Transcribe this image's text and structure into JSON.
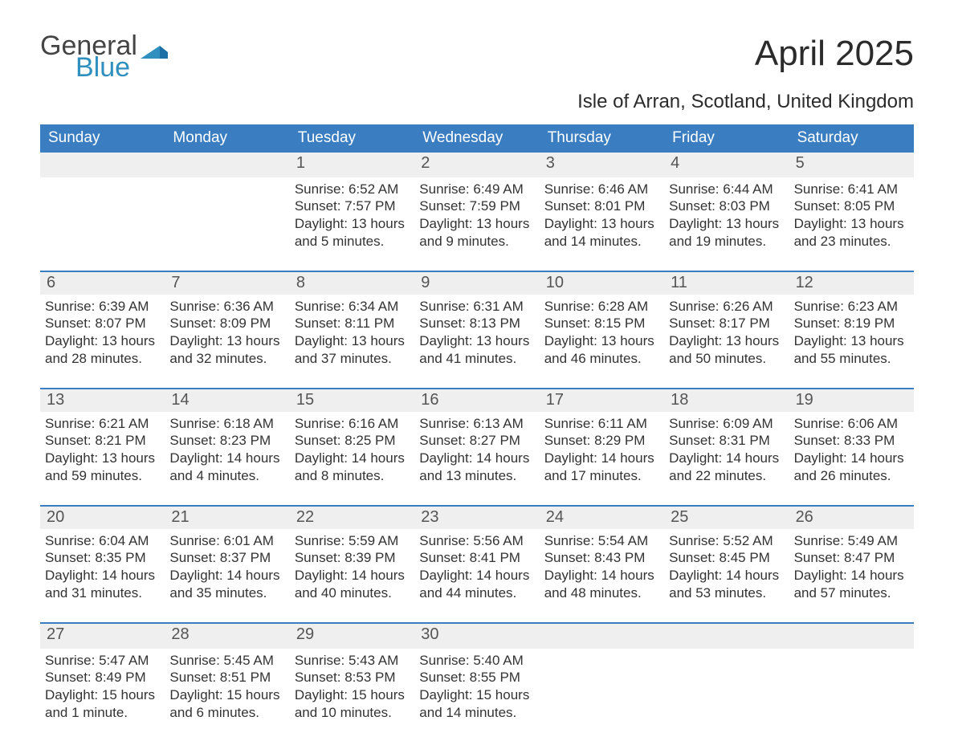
{
  "logo": {
    "line1": "General",
    "line2": "Blue",
    "accent_color": "#2f8fbf"
  },
  "title": "April 2025",
  "subtitle": "Isle of Arran, Scotland, United Kingdom",
  "colors": {
    "header_blue": "#3a7ec1",
    "daynum_bg": "#efefef",
    "row_sep": "#3a7ec1",
    "background": "#ffffff",
    "text": "#222222"
  },
  "typography": {
    "title_pt": 44,
    "subtitle_pt": 24,
    "dow_pt": 19,
    "daynum_pt": 20,
    "cell_pt": 17,
    "font_family": "Arial"
  },
  "days_of_week": [
    "Sunday",
    "Monday",
    "Tuesday",
    "Wednesday",
    "Thursday",
    "Friday",
    "Saturday"
  ],
  "calendar": {
    "leading_blanks": 2,
    "trailing_blanks": 3,
    "days": [
      {
        "n": "1",
        "sunrise": "6:52 AM",
        "sunset": "7:57 PM",
        "daylight": "13 hours and 5 minutes."
      },
      {
        "n": "2",
        "sunrise": "6:49 AM",
        "sunset": "7:59 PM",
        "daylight": "13 hours and 9 minutes."
      },
      {
        "n": "3",
        "sunrise": "6:46 AM",
        "sunset": "8:01 PM",
        "daylight": "13 hours and 14 minutes."
      },
      {
        "n": "4",
        "sunrise": "6:44 AM",
        "sunset": "8:03 PM",
        "daylight": "13 hours and 19 minutes."
      },
      {
        "n": "5",
        "sunrise": "6:41 AM",
        "sunset": "8:05 PM",
        "daylight": "13 hours and 23 minutes."
      },
      {
        "n": "6",
        "sunrise": "6:39 AM",
        "sunset": "8:07 PM",
        "daylight": "13 hours and 28 minutes."
      },
      {
        "n": "7",
        "sunrise": "6:36 AM",
        "sunset": "8:09 PM",
        "daylight": "13 hours and 32 minutes."
      },
      {
        "n": "8",
        "sunrise": "6:34 AM",
        "sunset": "8:11 PM",
        "daylight": "13 hours and 37 minutes."
      },
      {
        "n": "9",
        "sunrise": "6:31 AM",
        "sunset": "8:13 PM",
        "daylight": "13 hours and 41 minutes."
      },
      {
        "n": "10",
        "sunrise": "6:28 AM",
        "sunset": "8:15 PM",
        "daylight": "13 hours and 46 minutes."
      },
      {
        "n": "11",
        "sunrise": "6:26 AM",
        "sunset": "8:17 PM",
        "daylight": "13 hours and 50 minutes."
      },
      {
        "n": "12",
        "sunrise": "6:23 AM",
        "sunset": "8:19 PM",
        "daylight": "13 hours and 55 minutes."
      },
      {
        "n": "13",
        "sunrise": "6:21 AM",
        "sunset": "8:21 PM",
        "daylight": "13 hours and 59 minutes."
      },
      {
        "n": "14",
        "sunrise": "6:18 AM",
        "sunset": "8:23 PM",
        "daylight": "14 hours and 4 minutes."
      },
      {
        "n": "15",
        "sunrise": "6:16 AM",
        "sunset": "8:25 PM",
        "daylight": "14 hours and 8 minutes."
      },
      {
        "n": "16",
        "sunrise": "6:13 AM",
        "sunset": "8:27 PM",
        "daylight": "14 hours and 13 minutes."
      },
      {
        "n": "17",
        "sunrise": "6:11 AM",
        "sunset": "8:29 PM",
        "daylight": "14 hours and 17 minutes."
      },
      {
        "n": "18",
        "sunrise": "6:09 AM",
        "sunset": "8:31 PM",
        "daylight": "14 hours and 22 minutes."
      },
      {
        "n": "19",
        "sunrise": "6:06 AM",
        "sunset": "8:33 PM",
        "daylight": "14 hours and 26 minutes."
      },
      {
        "n": "20",
        "sunrise": "6:04 AM",
        "sunset": "8:35 PM",
        "daylight": "14 hours and 31 minutes."
      },
      {
        "n": "21",
        "sunrise": "6:01 AM",
        "sunset": "8:37 PM",
        "daylight": "14 hours and 35 minutes."
      },
      {
        "n": "22",
        "sunrise": "5:59 AM",
        "sunset": "8:39 PM",
        "daylight": "14 hours and 40 minutes."
      },
      {
        "n": "23",
        "sunrise": "5:56 AM",
        "sunset": "8:41 PM",
        "daylight": "14 hours and 44 minutes."
      },
      {
        "n": "24",
        "sunrise": "5:54 AM",
        "sunset": "8:43 PM",
        "daylight": "14 hours and 48 minutes."
      },
      {
        "n": "25",
        "sunrise": "5:52 AM",
        "sunset": "8:45 PM",
        "daylight": "14 hours and 53 minutes."
      },
      {
        "n": "26",
        "sunrise": "5:49 AM",
        "sunset": "8:47 PM",
        "daylight": "14 hours and 57 minutes."
      },
      {
        "n": "27",
        "sunrise": "5:47 AM",
        "sunset": "8:49 PM",
        "daylight": "15 hours and 1 minute."
      },
      {
        "n": "28",
        "sunrise": "5:45 AM",
        "sunset": "8:51 PM",
        "daylight": "15 hours and 6 minutes."
      },
      {
        "n": "29",
        "sunrise": "5:43 AM",
        "sunset": "8:53 PM",
        "daylight": "15 hours and 10 minutes."
      },
      {
        "n": "30",
        "sunrise": "5:40 AM",
        "sunset": "8:55 PM",
        "daylight": "15 hours and 14 minutes."
      }
    ]
  },
  "labels": {
    "sunrise": "Sunrise: ",
    "sunset": "Sunset: ",
    "daylight": "Daylight: "
  }
}
